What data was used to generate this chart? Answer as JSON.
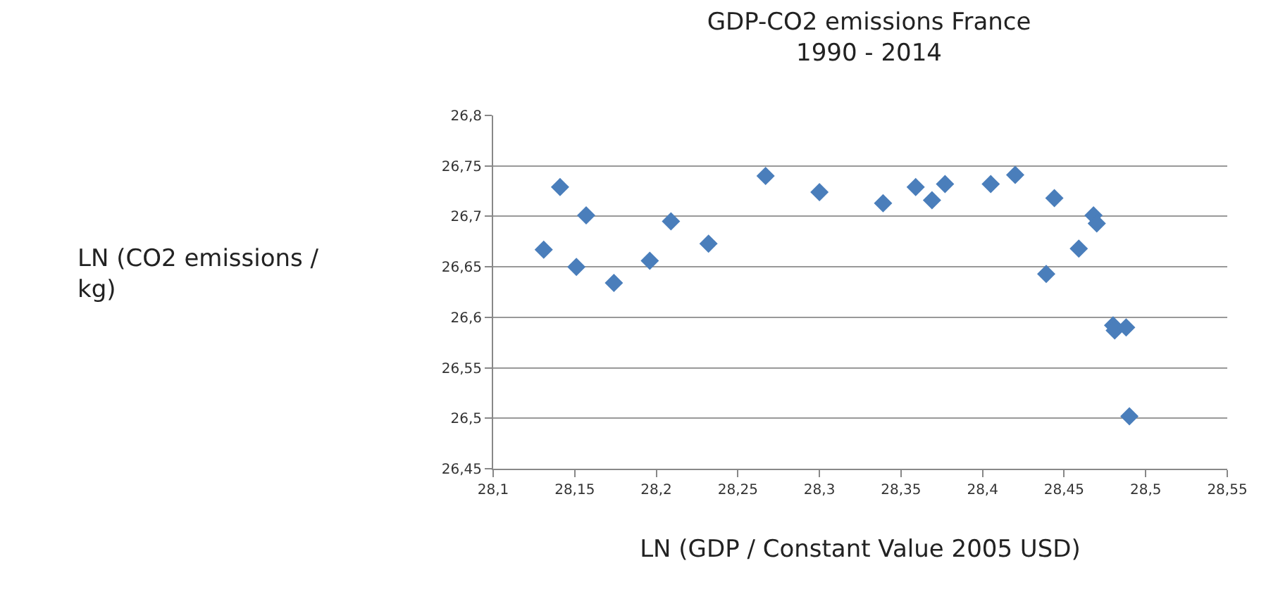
{
  "chart_data": {
    "type": "scatter",
    "title": "GDP-CO2 emissions France\n1990 - 2014",
    "xlabel": "LN (GDP / Constant Value 2005 USD)",
    "annotations": [
      "LN (CO2 emissions /\nkg)"
    ],
    "x": [
      28.131,
      28.141,
      28.151,
      28.157,
      28.174,
      28.196,
      28.209,
      28.232,
      28.267,
      28.3,
      28.339,
      28.359,
      28.369,
      28.377,
      28.405,
      28.42,
      28.444,
      28.439,
      28.459,
      28.468,
      28.47,
      28.48,
      28.481,
      28.488,
      28.49
    ],
    "series": [
      {
        "color": "#4a7ebb",
        "values": [
          26.667,
          26.729,
          26.65,
          26.701,
          26.634,
          26.656,
          26.695,
          26.673,
          26.74,
          26.724,
          26.713,
          26.729,
          26.716,
          26.732,
          26.732,
          26.741,
          26.718,
          26.643,
          26.668,
          26.701,
          26.693,
          26.592,
          26.587,
          26.59,
          26.502
        ]
      }
    ],
    "xlim": [
      28.1,
      28.55
    ],
    "xticks": [
      {
        "value": 28.1,
        "label": "28,1"
      },
      {
        "value": 28.15,
        "label": "28,15"
      },
      {
        "value": 28.2,
        "label": "28,2"
      },
      {
        "value": 28.25,
        "label": "28,25"
      },
      {
        "value": 28.3,
        "label": "28,3"
      },
      {
        "value": 28.35,
        "label": "28,35"
      },
      {
        "value": 28.4,
        "label": "28,4"
      },
      {
        "value": 28.45,
        "label": "28,45"
      },
      {
        "value": 28.5,
        "label": "28,5"
      },
      {
        "value": 28.55,
        "label": "28,55"
      }
    ],
    "ylim": [
      26.45,
      26.8
    ],
    "yticks": [
      {
        "value": 26.45,
        "label": "26,45"
      },
      {
        "value": 26.5,
        "label": "26,5"
      },
      {
        "value": 26.55,
        "label": "26,55"
      },
      {
        "value": 26.6,
        "label": "26,6"
      },
      {
        "value": 26.65,
        "label": "26,65"
      },
      {
        "value": 26.7,
        "label": "26,7"
      },
      {
        "value": 26.75,
        "label": "26,75"
      },
      {
        "value": 26.8,
        "label": "26,8"
      }
    ],
    "grid": "y",
    "marker": "diamond"
  }
}
